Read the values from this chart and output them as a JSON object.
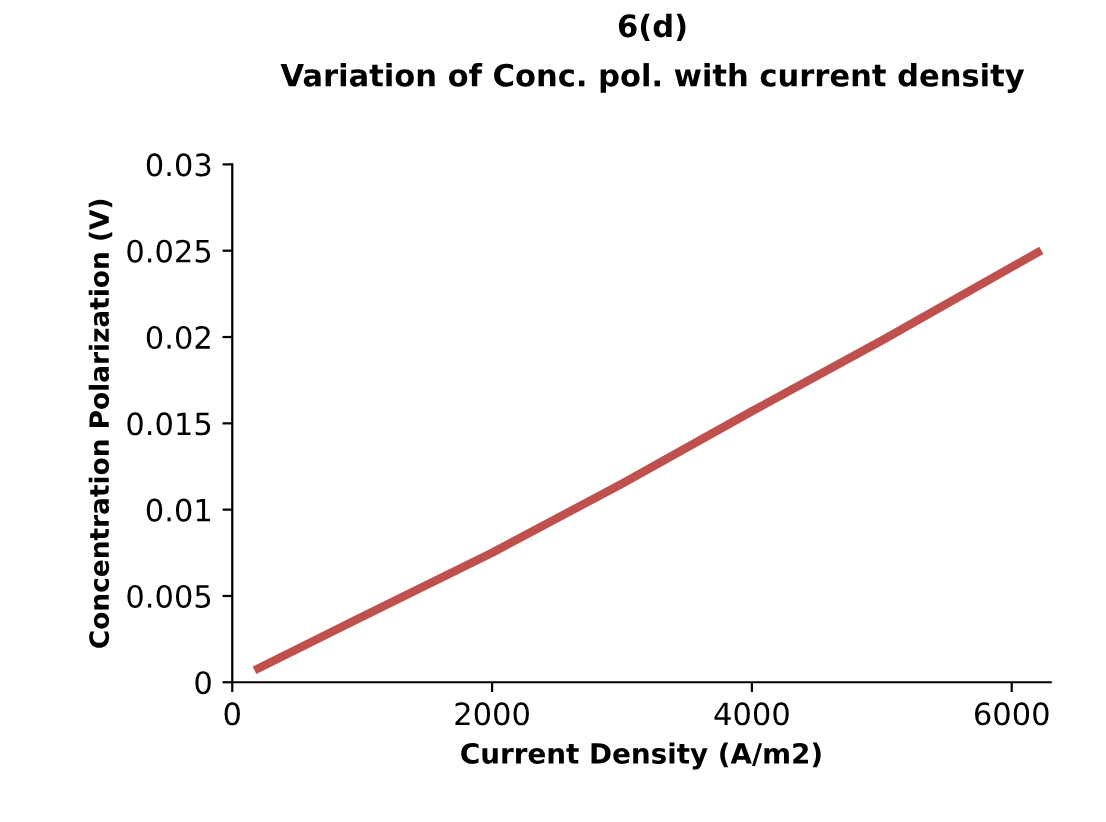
{
  "chart_data": {
    "type": "line",
    "title": "6(d)",
    "subtitle": "Variation of Conc. pol. with current density",
    "xlabel": "Current Density (A/m2)",
    "ylabel": "Concentration Polarization (V)",
    "x": [
      200,
      1000,
      2000,
      3000,
      4000,
      5000,
      6200
    ],
    "series": [
      {
        "color": "#c0504d",
        "values": [
          0.0008,
          0.0038,
          0.0075,
          0.0115,
          0.0157,
          0.0198,
          0.0249
        ]
      }
    ],
    "xlim": [
      0,
      6300
    ],
    "xticks": [
      0,
      2000,
      4000,
      6000
    ],
    "ylim": [
      0,
      0.03
    ],
    "yticks": [
      0,
      0.005,
      0.01,
      0.015,
      0.02,
      0.025,
      0.03
    ],
    "grid": false,
    "legend": false,
    "marker": "none",
    "line_style": "solid"
  }
}
